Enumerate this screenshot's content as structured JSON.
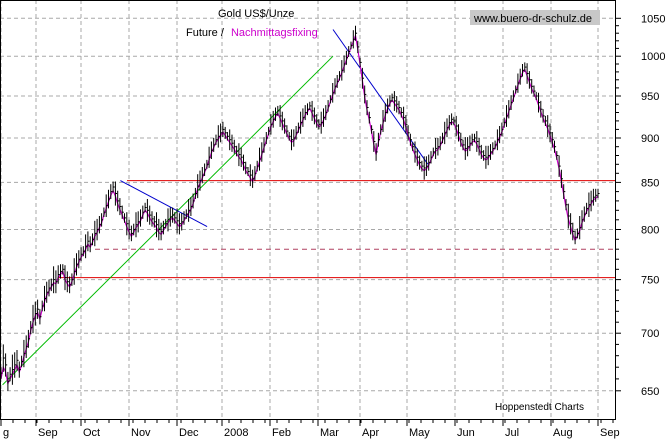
{
  "chart_data": {
    "type": "line",
    "title": "Gold US$/Unze",
    "subtitle_prefix": "Future /",
    "subtitle_highlight": "Nachmittagsfixing",
    "watermark": "www.buero-dr-schulz.de",
    "source": "Hoppenstedt Charts",
    "xlabel": "",
    "ylabel": "",
    "y_scale": "log",
    "ylim": [
      626,
      1075
    ],
    "y_ticks": [
      650,
      700,
      750,
      800,
      850,
      900,
      950,
      1000,
      1050
    ],
    "x_labels": [
      "g",
      "Sep",
      "Oct",
      "Nov",
      "Dec",
      "2008",
      "Feb",
      "Mar",
      "Apr",
      "May",
      "Jun",
      "Jul",
      "Aug",
      "Sep"
    ],
    "grid": true,
    "colors": {
      "future": "#000000",
      "fixing": "#cc00cc",
      "support": "#e00000",
      "uptrend": "#00bb00",
      "downtrend": "#0000cc",
      "grid": "#a8a8a8",
      "watermark_bg": "#c8c8c8"
    },
    "series": [
      {
        "name": "Future",
        "values": [
          665,
          678,
          672,
          658,
          664,
          668,
          672,
          676,
          668,
          675,
          682,
          688,
          695,
          705,
          713,
          718,
          722,
          715,
          725,
          732,
          738,
          742,
          745,
          750,
          748,
          755,
          758,
          760,
          752,
          748,
          745,
          750,
          758,
          765,
          770,
          775,
          778,
          783,
          788,
          785,
          790,
          796,
          800,
          805,
          810,
          818,
          825,
          832,
          840,
          845,
          838,
          830,
          824,
          818,
          812,
          806,
          800,
          796,
          800,
          805,
          808,
          812,
          818,
          823,
          820,
          815,
          811,
          808,
          805,
          800,
          798,
          802,
          806,
          810,
          813,
          815,
          812,
          809,
          806,
          808,
          812,
          816,
          820,
          824,
          830,
          838,
          846,
          852,
          858,
          864,
          870,
          878,
          886,
          892,
          898,
          902,
          906,
          910,
          906,
          902,
          898,
          894,
          890,
          885,
          881,
          878,
          872,
          866,
          862,
          858,
          854,
          860,
          868,
          876,
          884,
          892,
          900,
          908,
          916,
          922,
          928,
          932,
          926,
          920,
          914,
          908,
          902,
          898,
          900,
          906,
          912,
          918,
          924,
          930,
          934,
          938,
          932,
          926,
          920,
          916,
          918,
          924,
          930,
          938,
          946,
          954,
          962,
          968,
          975,
          982,
          990,
          998,
          1006,
          1014,
          1022,
          1030,
          1012,
          992,
          972,
          952,
          936,
          924,
          910,
          896,
          884,
          898,
          910,
          920,
          930,
          938,
          944,
          948,
          944,
          940,
          936,
          930,
          924,
          916,
          906,
          898,
          890,
          884,
          878,
          872,
          868,
          866,
          868,
          872,
          878,
          884,
          888,
          890,
          894,
          900,
          906,
          912,
          918,
          922,
          920,
          914,
          906,
          898,
          892,
          888,
          890,
          894,
          898,
          900,
          896,
          890,
          884,
          880,
          878,
          880,
          884,
          888,
          892,
          898,
          904,
          910,
          918,
          926,
          934,
          942,
          950,
          958,
          966,
          974,
          982,
          986,
          978,
          970,
          962,
          956,
          950,
          942,
          934,
          926,
          920,
          914,
          906,
          898,
          890,
          880,
          868,
          854,
          840,
          826,
          814,
          806,
          798,
          792,
          796,
          802,
          810,
          816,
          822,
          826,
          830,
          834,
          836,
          838
        ]
      },
      {
        "name": "Nachmittagsfixing",
        "values": [
          660,
          670,
          666,
          656,
          660,
          664,
          668,
          672,
          666,
          672,
          679,
          686,
          692,
          702,
          710,
          716,
          719,
          713,
          722,
          729,
          735,
          739,
          743,
          747,
          746,
          752,
          755,
          758,
          750,
          746,
          743,
          748,
          755,
          762,
          767,
          772,
          775,
          780,
          785,
          782,
          787,
          793,
          797,
          802,
          807,
          815,
          822,
          829,
          836,
          841,
          835,
          827,
          821,
          815,
          809,
          803,
          797,
          793,
          797,
          802,
          805,
          809,
          815,
          820,
          817,
          812,
          808,
          805,
          802,
          797,
          795,
          799,
          803,
          807,
          810,
          812,
          809,
          806,
          803,
          805,
          809,
          813,
          817,
          821,
          827,
          835,
          843,
          849,
          855,
          861,
          867,
          875,
          883,
          889,
          895,
          899,
          903,
          907,
          903,
          899,
          895,
          891,
          887,
          882,
          878,
          875,
          869,
          863,
          859,
          855,
          851,
          857,
          865,
          873,
          881,
          889,
          897,
          905,
          913,
          919,
          925,
          929,
          923,
          917,
          911,
          905,
          899,
          895,
          897,
          903,
          909,
          915,
          921,
          927,
          931,
          935,
          929,
          923,
          917,
          913,
          915,
          921,
          927,
          935,
          943,
          951,
          959,
          965,
          972,
          979,
          987,
          995,
          1003,
          1011,
          1019,
          1027,
          1009,
          989,
          969,
          949,
          933,
          921,
          907,
          893,
          881,
          895,
          907,
          917,
          927,
          935,
          941,
          945,
          941,
          937,
          933,
          927,
          921,
          913,
          903,
          895,
          887,
          881,
          875,
          869,
          865,
          863,
          865,
          869,
          875,
          881,
          885,
          887,
          891,
          897,
          903,
          909,
          915,
          919,
          917,
          911,
          903,
          895,
          889,
          885,
          887,
          891,
          895,
          897,
          893,
          887,
          881,
          877,
          875,
          877,
          881,
          885,
          889,
          895,
          901,
          907,
          915,
          923,
          931,
          939,
          947,
          955,
          963,
          971,
          979,
          983,
          975,
          967,
          959,
          953,
          947,
          939,
          931,
          923,
          917,
          911,
          903,
          895,
          887,
          877,
          865,
          851,
          837,
          823,
          811,
          803,
          795,
          789,
          793,
          799,
          807,
          813,
          819,
          823,
          827,
          831,
          833,
          835
        ]
      }
    ],
    "horizontal_levels": [
      {
        "value": 852,
        "style": "solid"
      },
      {
        "value": 780,
        "style": "dashed"
      },
      {
        "value": 752,
        "style": "solid"
      }
    ],
    "trendlines": [
      {
        "kind": "uptrend",
        "from": {
          "date": "2007-08-28",
          "value": 655
        },
        "to": {
          "date": "2008-03-17",
          "value": 1000
        }
      },
      {
        "kind": "downtrend",
        "from": {
          "date": "2007-11-08",
          "value": 852
        },
        "to": {
          "date": "2007-12-31",
          "value": 803
        }
      },
      {
        "kind": "downtrend",
        "from": {
          "date": "2008-03-17",
          "value": 1035
        },
        "to": {
          "date": "2008-05-14",
          "value": 870
        }
      }
    ]
  }
}
